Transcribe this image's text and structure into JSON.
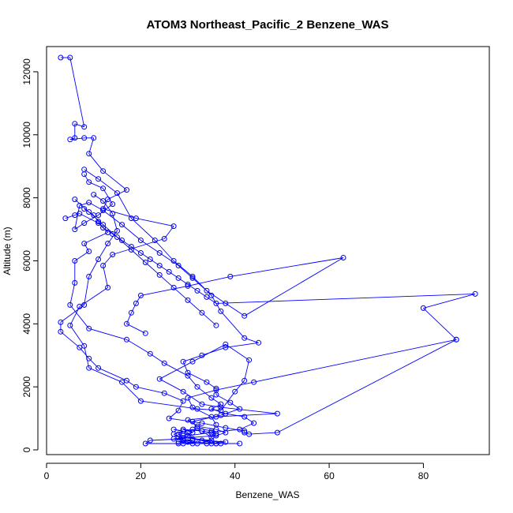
{
  "chart_data": {
    "type": "line",
    "title": "ATOM3 Northeast_Pacific_2 Benzene_WAS",
    "xlabel": "Benzene_WAS",
    "ylabel": "Altitude (m)",
    "xlim": [
      0,
      94
    ],
    "ylim": [
      -150,
      12800
    ],
    "x_ticks": [
      0,
      20,
      40,
      60,
      80
    ],
    "y_ticks": [
      0,
      2000,
      4000,
      6000,
      8000,
      10000,
      12000
    ],
    "grid": false,
    "legend": "none",
    "color": "#0000ff",
    "marker": "open-circle",
    "series": [
      {
        "x": [
          3,
          5,
          8,
          6,
          6,
          5,
          8,
          10,
          9,
          12,
          17,
          13,
          12,
          19,
          27,
          25,
          14,
          12,
          13,
          7,
          5,
          8,
          9,
          16,
          20,
          32,
          37,
          40,
          42,
          43,
          38,
          31,
          24,
          29,
          33,
          37,
          49,
          36,
          30,
          32,
          36,
          38,
          36,
          27,
          31,
          28,
          32,
          29,
          34,
          41
        ],
        "y": [
          12450,
          12450,
          10250,
          10350,
          9900,
          9850,
          9900,
          9900,
          9400,
          8850,
          8250,
          7950,
          7650,
          7350,
          7100,
          6700,
          6200,
          5850,
          5150,
          4550,
          3950,
          3300,
          2600,
          2150,
          1550,
          1300,
          1250,
          1850,
          2200,
          2850,
          3350,
          2800,
          2250,
          1850,
          1450,
          1350,
          1150,
          1050,
          950,
          750,
          650,
          550,
          450,
          350,
          300,
          250,
          200,
          200,
          200,
          200
        ]
      },
      {
        "x": [
          4,
          6,
          7,
          11,
          13,
          8,
          9,
          6,
          6,
          5,
          9,
          17,
          22,
          25,
          30,
          32,
          35,
          37,
          35,
          38,
          42,
          44,
          41,
          35,
          30,
          29,
          22,
          21,
          28,
          36,
          31,
          30,
          27,
          29,
          28,
          29,
          33,
          38,
          35,
          36,
          31,
          29,
          27,
          31,
          33,
          35
        ],
        "y": [
          7350,
          7450,
          7500,
          7200,
          6900,
          6550,
          6300,
          6000,
          5300,
          4600,
          3850,
          3500,
          3050,
          2750,
          2350,
          2000,
          1650,
          1450,
          1300,
          1150,
          1050,
          850,
          650,
          550,
          450,
          350,
          300,
          200,
          200,
          200,
          350,
          550,
          650,
          600,
          500,
          450,
          300,
          250,
          200,
          200,
          200,
          300,
          500,
          650,
          600,
          550
        ]
      },
      {
        "x": [
          8,
          11,
          15,
          18,
          23,
          27,
          31,
          35,
          37,
          42,
          45,
          38,
          33,
          29,
          30,
          34,
          36,
          36,
          39,
          41,
          37,
          31,
          32,
          35,
          36,
          35,
          33,
          29,
          31,
          28,
          35,
          37,
          30
        ],
        "y": [
          8900,
          8600,
          8150,
          7350,
          6650,
          6000,
          5500,
          4900,
          4400,
          3550,
          3400,
          3250,
          3000,
          2800,
          2450,
          2150,
          1950,
          1750,
          1500,
          1300,
          1100,
          900,
          700,
          600,
          500,
          400,
          600,
          650,
          550,
          400,
          300,
          200,
          250
        ]
      },
      {
        "x": [
          10,
          12,
          14,
          15,
          13,
          11,
          9,
          8,
          3,
          3,
          7,
          9,
          11,
          17,
          19,
          25,
          29,
          28,
          26,
          33,
          38,
          42,
          42,
          43,
          49,
          87,
          44,
          36,
          30,
          31,
          35,
          36
        ],
        "y": [
          8100,
          7900,
          7500,
          6950,
          6550,
          6050,
          5500,
          4600,
          4050,
          3750,
          3250,
          2900,
          2600,
          2200,
          2000,
          1800,
          1550,
          1250,
          1000,
          850,
          700,
          600,
          550,
          500,
          550,
          3500,
          2150,
          1900,
          1650,
          1350,
          1050,
          800
        ]
      },
      {
        "x": [
          8,
          9,
          12,
          14,
          11,
          8,
          6,
          7,
          9,
          12,
          16,
          20,
          24,
          28,
          31,
          34,
          38,
          42,
          63,
          39,
          30,
          20,
          19,
          18,
          17,
          21
        ],
        "y": [
          8750,
          8500,
          8300,
          7800,
          7450,
          7200,
          7000,
          7750,
          7850,
          7600,
          7150,
          6650,
          6250,
          5850,
          5450,
          5050,
          4650,
          4250,
          6100,
          5500,
          5200,
          4900,
          4650,
          4350,
          4000,
          3700
        ]
      },
      {
        "x": [
          8,
          10,
          11,
          12,
          14,
          16,
          18,
          20,
          22,
          24,
          26,
          28,
          30,
          32,
          34,
          36,
          91,
          80,
          87
        ],
        "y": [
          7650,
          7450,
          7250,
          7050,
          6850,
          6650,
          6450,
          6250,
          6050,
          5850,
          5650,
          5450,
          5250,
          5050,
          4850,
          4650,
          4950,
          4500,
          3500
        ]
      },
      {
        "x": [
          6,
          9,
          12,
          15,
          18,
          21,
          24,
          27,
          30,
          33,
          36
        ],
        "y": [
          7950,
          7550,
          7150,
          6750,
          6350,
          5950,
          5550,
          5150,
          4750,
          4350,
          3950
        ]
      }
    ]
  }
}
